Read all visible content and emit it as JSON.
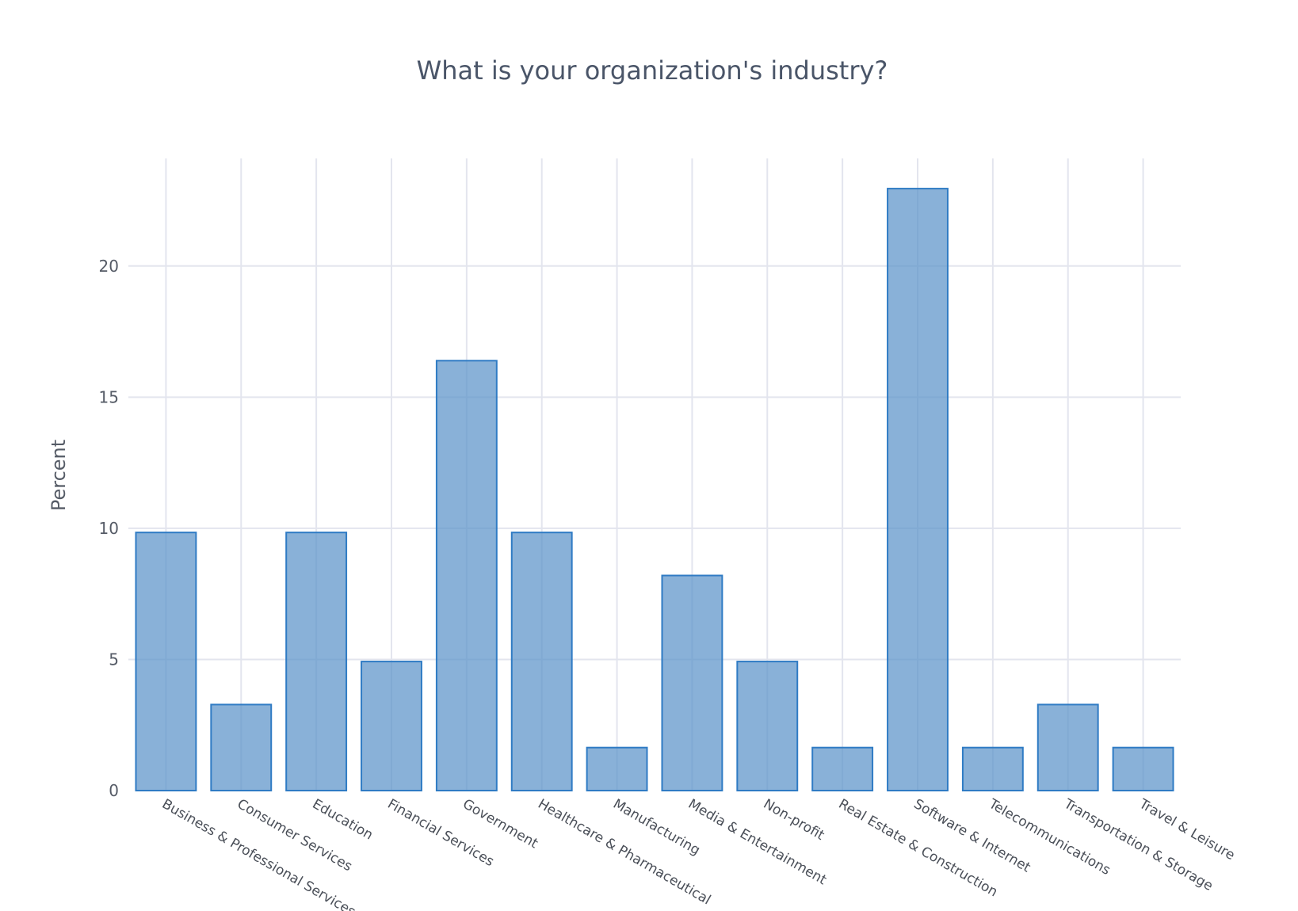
{
  "chart_data": {
    "type": "bar",
    "title": "What is your organization's industry?",
    "xlabel": "",
    "ylabel": "Percent",
    "categories": [
      "Business & Professional Services",
      "Consumer Services",
      "Education",
      "Financial Services",
      "Government",
      "Healthcare & Pharmaceutical",
      "Manufacturing",
      "Media & Entertainment",
      "Non-profit",
      "Real Estate & Construction",
      "Software & Internet",
      "Telecommunications",
      "Transportation & Storage",
      "Travel & Leisure"
    ],
    "values": [
      9.84,
      3.28,
      9.84,
      4.92,
      16.39,
      9.84,
      1.64,
      8.2,
      4.92,
      1.64,
      22.95,
      1.64,
      3.28,
      1.64
    ],
    "ylim": [
      0,
      24.1
    ],
    "yticks": [
      0,
      5,
      10,
      15,
      20
    ],
    "grid": true,
    "colors": {
      "bar_fill": "#5b93c9",
      "bar_stroke": "#2f7bc4",
      "grid": "#e3e5ee",
      "text": "#4a5568"
    }
  }
}
